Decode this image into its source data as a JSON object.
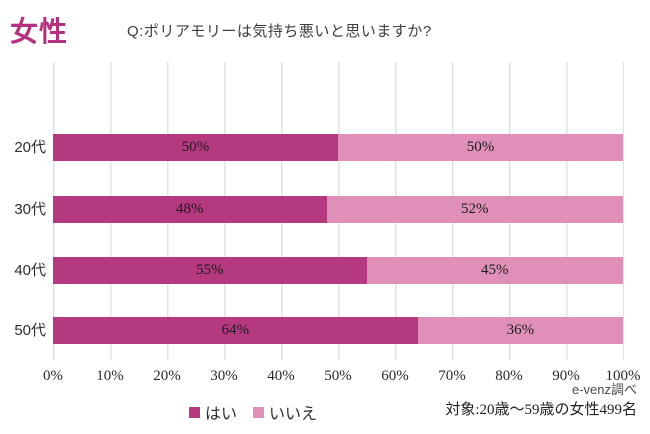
{
  "header": {
    "title": "女性",
    "question": "Q:ポリアモリーは気持ち悪いと思いますか?"
  },
  "chart_data": {
    "type": "bar",
    "orientation": "horizontal",
    "stacked": true,
    "title": "Q:ポリアモリーは気持ち悪いと思いますか?(女性)",
    "categories": [
      "20代",
      "30代",
      "40代",
      "50代"
    ],
    "series": [
      {
        "name": "はい",
        "color": "#b5397f",
        "values": [
          50,
          48,
          55,
          64
        ]
      },
      {
        "name": "いいえ",
        "color": "#e090b8",
        "values": [
          50,
          52,
          45,
          36
        ]
      }
    ],
    "value_suffix": "%",
    "xlim": [
      0,
      100
    ],
    "x_ticks": [
      "0%",
      "10%",
      "20%",
      "30%",
      "40%",
      "50%",
      "60%",
      "70%",
      "80%",
      "90%",
      "100%"
    ],
    "grid": "vertical",
    "legend_position": "bottom-center"
  },
  "footer": {
    "source": "e-venz調べ",
    "target": "対象:20歳〜59歳の女性499名"
  },
  "colors": {
    "accent_title": "#b5317f",
    "series_yes": "#b5397f",
    "series_no": "#e090b8",
    "gridline": "#e2e2e2",
    "text": "#2e2e2e"
  }
}
